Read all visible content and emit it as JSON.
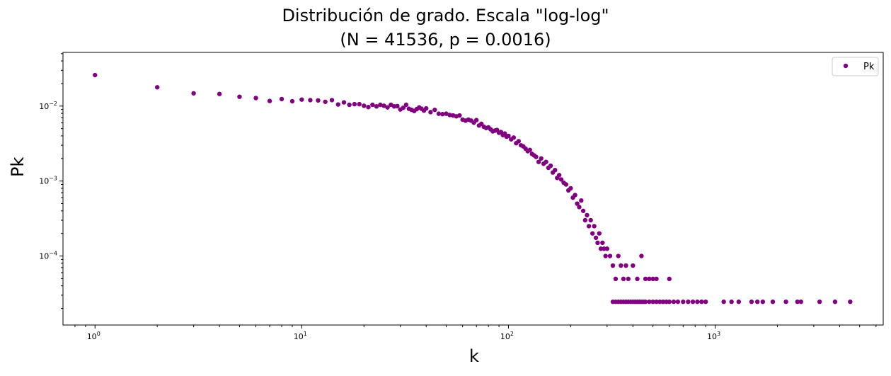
{
  "chart_data": {
    "type": "scatter",
    "title_lines": [
      "Distribución de grado. Escala \"log-log\"",
      "(N = 41536, p = 0.0016)"
    ],
    "xlabel": "k",
    "ylabel": "Pk",
    "x_scale": "log",
    "y_scale": "log",
    "xlim": [
      0.7,
      6500
    ],
    "ylim": [
      1.2e-05,
      0.052
    ],
    "x_ticks": [
      {
        "base": "10",
        "exp": "0",
        "value": 1
      },
      {
        "base": "10",
        "exp": "1",
        "value": 10
      },
      {
        "base": "10",
        "exp": "2",
        "value": 100
      },
      {
        "base": "10",
        "exp": "3",
        "value": 1000
      }
    ],
    "y_ticks": [
      {
        "base": "10",
        "exp": "−2",
        "value": 0.01
      },
      {
        "base": "10",
        "exp": "−3",
        "value": 0.001
      },
      {
        "base": "10",
        "exp": "−4",
        "value": 0.0001
      }
    ],
    "grid": false,
    "legend": {
      "position": "top-right",
      "entries": [
        "Pk"
      ]
    },
    "series": [
      {
        "name": "Pk",
        "color": "#800080",
        "points": [
          [
            1,
            0.0259
          ],
          [
            2,
            0.0178
          ],
          [
            3,
            0.0148
          ],
          [
            4,
            0.0145
          ],
          [
            5,
            0.0133
          ],
          [
            6,
            0.0128
          ],
          [
            7,
            0.0117
          ],
          [
            8,
            0.0124
          ],
          [
            9,
            0.0116
          ],
          [
            10,
            0.0122
          ],
          [
            11,
            0.012
          ],
          [
            12,
            0.0119
          ],
          [
            13,
            0.0114
          ],
          [
            14,
            0.012
          ],
          [
            15,
            0.0105
          ],
          [
            16,
            0.0112
          ],
          [
            17,
            0.0104
          ],
          [
            18,
            0.0106
          ],
          [
            19,
            0.0106
          ],
          [
            20,
            0.0101
          ],
          [
            21,
            0.0097
          ],
          [
            22,
            0.0104
          ],
          [
            23,
            0.0099
          ],
          [
            24,
            0.0104
          ],
          [
            25,
            0.0101
          ],
          [
            26,
            0.0096
          ],
          [
            27,
            0.0104
          ],
          [
            28,
            0.0099
          ],
          [
            29,
            0.01
          ],
          [
            30,
            0.009
          ],
          [
            31,
            0.0095
          ],
          [
            32,
            0.0104
          ],
          [
            33,
            0.0092
          ],
          [
            34,
            0.0089
          ],
          [
            35,
            0.0086
          ],
          [
            36,
            0.0091
          ],
          [
            37,
            0.0096
          ],
          [
            38,
            0.0092
          ],
          [
            39,
            0.0087
          ],
          [
            40,
            0.0093
          ],
          [
            42,
            0.0083
          ],
          [
            44,
            0.0089
          ],
          [
            46,
            0.0079
          ],
          [
            48,
            0.0078
          ],
          [
            50,
            0.0079
          ],
          [
            52,
            0.0076
          ],
          [
            54,
            0.0075
          ],
          [
            56,
            0.0073
          ],
          [
            58,
            0.0075
          ],
          [
            60,
            0.0066
          ],
          [
            62,
            0.0064
          ],
          [
            64,
            0.0066
          ],
          [
            66,
            0.0064
          ],
          [
            68,
            0.006
          ],
          [
            70,
            0.0065
          ],
          [
            72,
            0.0055
          ],
          [
            74,
            0.0058
          ],
          [
            76,
            0.0053
          ],
          [
            78,
            0.0051
          ],
          [
            80,
            0.0052
          ],
          [
            82,
            0.0049
          ],
          [
            84,
            0.0046
          ],
          [
            86,
            0.0047
          ],
          [
            88,
            0.0048
          ],
          [
            90,
            0.0044
          ],
          [
            92,
            0.0045
          ],
          [
            94,
            0.0041
          ],
          [
            96,
            0.0043
          ],
          [
            98,
            0.0039
          ],
          [
            100,
            0.004
          ],
          [
            103,
            0.0036
          ],
          [
            106,
            0.0038
          ],
          [
            109,
            0.0032
          ],
          [
            112,
            0.0034
          ],
          [
            115,
            0.003
          ],
          [
            118,
            0.0029
          ],
          [
            121,
            0.0027
          ],
          [
            124,
            0.0025
          ],
          [
            127,
            0.0026
          ],
          [
            130,
            0.0023
          ],
          [
            133,
            0.0022
          ],
          [
            136,
            0.0021
          ],
          [
            140,
            0.0018
          ],
          [
            144,
            0.002
          ],
          [
            148,
            0.0017
          ],
          [
            152,
            0.0018
          ],
          [
            156,
            0.0015
          ],
          [
            160,
            0.0016
          ],
          [
            164,
            0.0013
          ],
          [
            168,
            0.0014
          ],
          [
            172,
            0.0011
          ],
          [
            176,
            0.0012
          ],
          [
            180,
            0.00105
          ],
          [
            185,
            0.00095
          ],
          [
            190,
            0.0009
          ],
          [
            195,
            0.00075
          ],
          [
            200,
            0.0008
          ],
          [
            205,
            0.0006
          ],
          [
            210,
            0.00065
          ],
          [
            215,
            0.0005
          ],
          [
            220,
            0.00045
          ],
          [
            225,
            0.00055
          ],
          [
            230,
            0.0004
          ],
          [
            235,
            0.0003
          ],
          [
            240,
            0.00035
          ],
          [
            245,
            0.00025
          ],
          [
            250,
            0.0003
          ],
          [
            255,
            0.0002
          ],
          [
            260,
            0.00025
          ],
          [
            265,
            0.000175
          ],
          [
            270,
            0.00015
          ],
          [
            275,
            0.0002
          ],
          [
            280,
            0.000125
          ],
          [
            285,
            0.00015
          ],
          [
            290,
            0.000125
          ],
          [
            295,
            0.0001
          ],
          [
            300,
            0.000125
          ],
          [
            310,
            0.0001
          ],
          [
            320,
            7.45e-05
          ],
          [
            330,
            4.95e-05
          ],
          [
            340,
            0.0001
          ],
          [
            350,
            7.45e-05
          ],
          [
            360,
            4.95e-05
          ],
          [
            370,
            7.45e-05
          ],
          [
            380,
            4.95e-05
          ],
          [
            400,
            7.45e-05
          ],
          [
            420,
            4.95e-05
          ],
          [
            440,
            0.0001
          ],
          [
            460,
            4.95e-05
          ],
          [
            480,
            4.95e-05
          ],
          [
            500,
            4.95e-05
          ],
          [
            520,
            4.95e-05
          ],
          [
            600,
            4.95e-05
          ],
          [
            320,
            2.45e-05
          ],
          [
            330,
            2.45e-05
          ],
          [
            340,
            2.45e-05
          ],
          [
            350,
            2.45e-05
          ],
          [
            360,
            2.45e-05
          ],
          [
            370,
            2.45e-05
          ],
          [
            380,
            2.45e-05
          ],
          [
            390,
            2.45e-05
          ],
          [
            400,
            2.45e-05
          ],
          [
            410,
            2.45e-05
          ],
          [
            420,
            2.45e-05
          ],
          [
            430,
            2.45e-05
          ],
          [
            440,
            2.45e-05
          ],
          [
            450,
            2.45e-05
          ],
          [
            460,
            2.45e-05
          ],
          [
            480,
            2.45e-05
          ],
          [
            500,
            2.45e-05
          ],
          [
            520,
            2.45e-05
          ],
          [
            540,
            2.45e-05
          ],
          [
            560,
            2.45e-05
          ],
          [
            580,
            2.45e-05
          ],
          [
            600,
            2.45e-05
          ],
          [
            630,
            2.45e-05
          ],
          [
            660,
            2.45e-05
          ],
          [
            700,
            2.45e-05
          ],
          [
            740,
            2.45e-05
          ],
          [
            780,
            2.45e-05
          ],
          [
            820,
            2.45e-05
          ],
          [
            860,
            2.45e-05
          ],
          [
            900,
            2.45e-05
          ],
          [
            1100,
            2.45e-05
          ],
          [
            1200,
            2.45e-05
          ],
          [
            1300,
            2.45e-05
          ],
          [
            1500,
            2.45e-05
          ],
          [
            1600,
            2.45e-05
          ],
          [
            1700,
            2.45e-05
          ],
          [
            1900,
            2.45e-05
          ],
          [
            2200,
            2.45e-05
          ],
          [
            2500,
            2.45e-05
          ],
          [
            2600,
            2.45e-05
          ],
          [
            3200,
            2.45e-05
          ],
          [
            3800,
            2.45e-05
          ],
          [
            4500,
            2.45e-05
          ]
        ]
      }
    ]
  }
}
